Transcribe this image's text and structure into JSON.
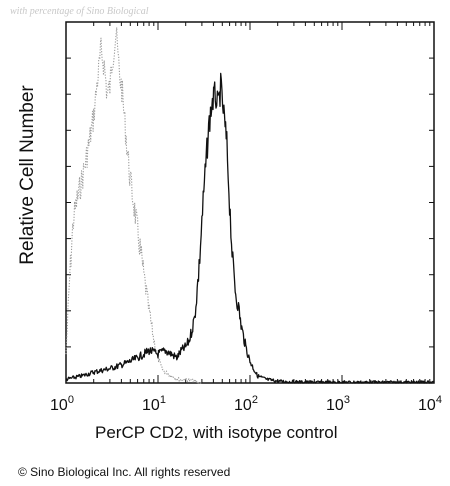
{
  "watermark": "with percentage of Sino Biological",
  "copyright": "© Sino Biological Inc. All rights reserved",
  "chart_data": {
    "type": "line",
    "title": "",
    "xlabel": "PerCP CD2, with isotype control",
    "ylabel": "Relative Cell Number",
    "x_scale": "log",
    "xlim": [
      1,
      10000
    ],
    "ylim": [
      0,
      1.0
    ],
    "grid": false,
    "legend": "none",
    "x_ticks": [
      {
        "value": 1,
        "base": "10",
        "exp": "0"
      },
      {
        "value": 10,
        "base": "10",
        "exp": "1"
      },
      {
        "value": 100,
        "base": "10",
        "exp": "2"
      },
      {
        "value": 1000,
        "base": "10",
        "exp": "3"
      },
      {
        "value": 10000,
        "base": "10",
        "exp": "4"
      }
    ],
    "series": [
      {
        "role": "isotype control",
        "style": "dotted",
        "color": "#9a9a9a",
        "x": [
          1,
          1.1,
          1.2,
          1.3,
          1.45,
          1.6,
          1.8,
          2.0,
          2.2,
          2.4,
          2.6,
          2.8,
          3.0,
          3.2,
          3.5,
          3.8,
          4.1,
          4.5,
          5.0,
          5.5,
          6.0,
          6.5,
          7.0,
          7.5,
          8.0,
          9.0,
          10,
          11,
          12,
          14,
          17,
          20,
          25,
          30
        ],
        "y": [
          0.08,
          0.3,
          0.45,
          0.5,
          0.55,
          0.6,
          0.67,
          0.74,
          0.84,
          0.92,
          0.88,
          0.8,
          0.82,
          0.9,
          0.97,
          0.86,
          0.8,
          0.68,
          0.56,
          0.49,
          0.42,
          0.36,
          0.3,
          0.25,
          0.2,
          0.12,
          0.07,
          0.04,
          0.03,
          0.02,
          0.01,
          0.01,
          0.005,
          0.0
        ]
      },
      {
        "role": "PerCP CD2",
        "style": "solid",
        "color": "#111111",
        "x": [
          1,
          1.5,
          2,
          3,
          4,
          5,
          6,
          7,
          8,
          10,
          12,
          14,
          16,
          18,
          20,
          22,
          25,
          28,
          30,
          33,
          36,
          39,
          42,
          45,
          48,
          52,
          56,
          60,
          65,
          70,
          75,
          80,
          90,
          100,
          120,
          150,
          200,
          300,
          500,
          1000,
          3000,
          10000
        ],
        "y": [
          0.01,
          0.02,
          0.03,
          0.04,
          0.05,
          0.06,
          0.07,
          0.08,
          0.09,
          0.08,
          0.09,
          0.08,
          0.07,
          0.09,
          0.1,
          0.12,
          0.18,
          0.32,
          0.45,
          0.6,
          0.72,
          0.78,
          0.8,
          0.76,
          0.82,
          0.74,
          0.66,
          0.5,
          0.33,
          0.25,
          0.21,
          0.16,
          0.1,
          0.06,
          0.02,
          0.01,
          0.005,
          0.003,
          0.002,
          0.002,
          0.002,
          0.002
        ]
      }
    ]
  }
}
